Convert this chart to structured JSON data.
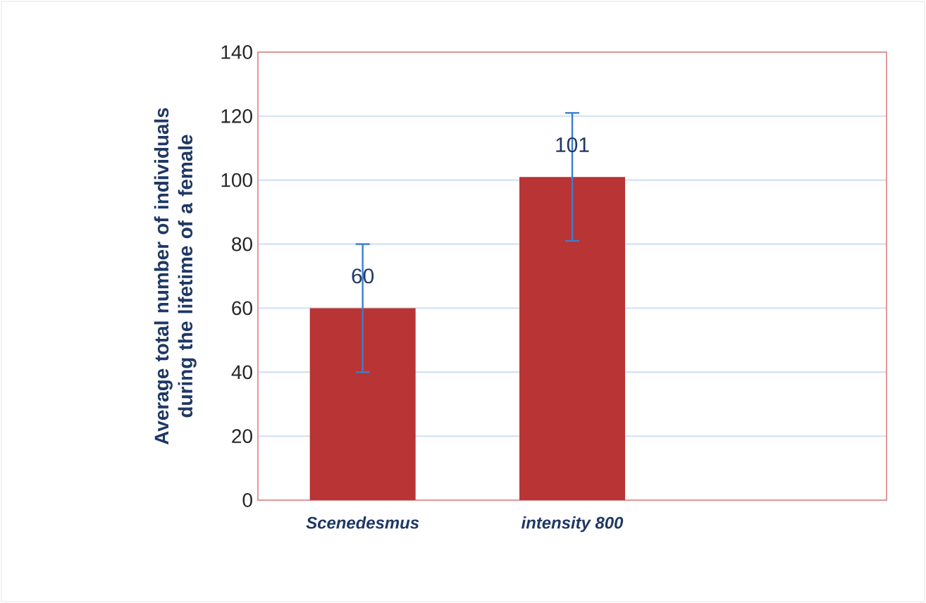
{
  "chart_data": {
    "type": "bar",
    "ylabel": "Average total number of individuals during the lifetime of a female",
    "categories": [
      "Scenedesmus",
      "intensity 800",
      null
    ],
    "values": [
      60,
      101,
      null
    ],
    "errors": [
      20,
      20,
      null
    ],
    "color": "#b93434",
    "data_labels": true,
    "ylim": [
      0,
      140
    ],
    "yticks": [
      0,
      20,
      40,
      60,
      80,
      100,
      120,
      140
    ],
    "grid": "y"
  }
}
